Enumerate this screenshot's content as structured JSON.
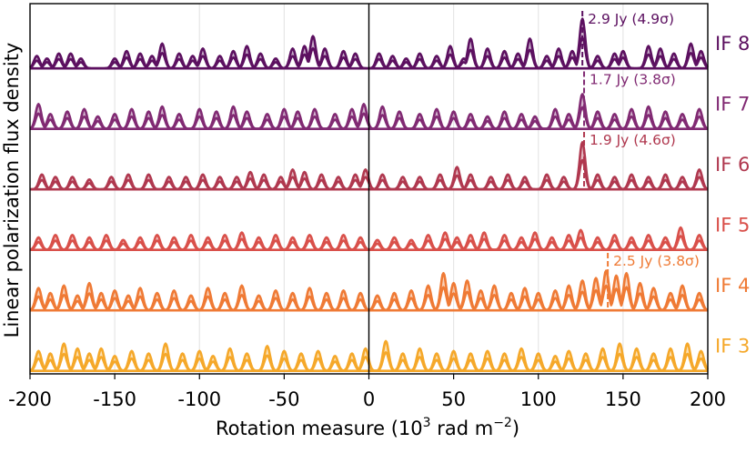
{
  "chart_data": {
    "type": "area",
    "title": "",
    "xlabel": "Rotation measure (10",
    "xlabel_sup": "3",
    "xlabel_unit": " rad m",
    "xlabel_unit_sup": "−2",
    "xlabel_close": ")",
    "ylabel": "Linear polarization flux density",
    "xlim": [
      -200,
      200
    ],
    "x_ticks": [
      -200,
      -150,
      -100,
      -50,
      0,
      50,
      100,
      150,
      200
    ],
    "x_tick_labels": [
      "-200",
      "-150",
      "-100",
      "-50",
      "0",
      "50",
      "100",
      "150",
      "200"
    ],
    "grid": true,
    "reference_line_x": 0,
    "series": [
      {
        "name": "IF 8",
        "color": "#5c1060",
        "peaks": [
          [
            -196,
            0.25
          ],
          [
            -190,
            0.2
          ],
          [
            -183,
            0.3
          ],
          [
            -176,
            0.3
          ],
          [
            -170,
            0.2
          ],
          [
            -150,
            0.2
          ],
          [
            -143,
            0.35
          ],
          [
            -135,
            0.3
          ],
          [
            -128,
            0.25
          ],
          [
            -122,
            0.5
          ],
          [
            -112,
            0.3
          ],
          [
            -104,
            0.25
          ],
          [
            -98,
            0.4
          ],
          [
            -88,
            0.25
          ],
          [
            -80,
            0.35
          ],
          [
            -72,
            0.45
          ],
          [
            -64,
            0.3
          ],
          [
            -55,
            0.2
          ],
          [
            -45,
            0.4
          ],
          [
            -38,
            0.45
          ],
          [
            -33,
            0.65
          ],
          [
            -26,
            0.4
          ],
          [
            -15,
            0.35
          ],
          [
            -8,
            0.3
          ],
          [
            6,
            0.3
          ],
          [
            14,
            0.25
          ],
          [
            22,
            0.2
          ],
          [
            30,
            0.3
          ],
          [
            40,
            0.25
          ],
          [
            48,
            0.45
          ],
          [
            56,
            0.2
          ],
          [
            60,
            0.6
          ],
          [
            70,
            0.4
          ],
          [
            80,
            0.35
          ],
          [
            88,
            0.3
          ],
          [
            95,
            0.6
          ],
          [
            105,
            0.25
          ],
          [
            112,
            0.4
          ],
          [
            120,
            0.35
          ],
          [
            126,
            1.0
          ],
          [
            135,
            0.25
          ],
          [
            145,
            0.3
          ],
          [
            150,
            0.35
          ],
          [
            165,
            0.45
          ],
          [
            172,
            0.4
          ],
          [
            180,
            0.3
          ],
          [
            190,
            0.5
          ],
          [
            196,
            0.35
          ]
        ],
        "annotation": {
          "x": 126,
          "label": "2.9 Jy (4.9σ)"
        }
      },
      {
        "name": "IF 7",
        "color": "#812a73",
        "peaks": [
          [
            -195,
            0.5
          ],
          [
            -188,
            0.3
          ],
          [
            -178,
            0.35
          ],
          [
            -168,
            0.4
          ],
          [
            -160,
            0.25
          ],
          [
            -150,
            0.3
          ],
          [
            -140,
            0.4
          ],
          [
            -130,
            0.35
          ],
          [
            -122,
            0.45
          ],
          [
            -112,
            0.3
          ],
          [
            -100,
            0.4
          ],
          [
            -90,
            0.35
          ],
          [
            -80,
            0.45
          ],
          [
            -72,
            0.35
          ],
          [
            -60,
            0.3
          ],
          [
            -50,
            0.4
          ],
          [
            -42,
            0.35
          ],
          [
            -32,
            0.4
          ],
          [
            -20,
            0.3
          ],
          [
            -10,
            0.4
          ],
          [
            -3,
            0.5
          ],
          [
            8,
            0.45
          ],
          [
            18,
            0.35
          ],
          [
            30,
            0.3
          ],
          [
            40,
            0.4
          ],
          [
            50,
            0.35
          ],
          [
            60,
            0.3
          ],
          [
            70,
            0.25
          ],
          [
            80,
            0.35
          ],
          [
            90,
            0.3
          ],
          [
            98,
            0.25
          ],
          [
            110,
            0.4
          ],
          [
            118,
            0.3
          ],
          [
            126,
            0.7
          ],
          [
            135,
            0.35
          ],
          [
            145,
            0.3
          ],
          [
            155,
            0.4
          ],
          [
            165,
            0.45
          ],
          [
            175,
            0.35
          ],
          [
            185,
            0.3
          ],
          [
            195,
            0.4
          ]
        ],
        "annotation": {
          "x": 127,
          "label": "1.7 Jy (3.8σ)"
        }
      },
      {
        "name": "IF 6",
        "color": "#b0384f",
        "peaks": [
          [
            -193,
            0.3
          ],
          [
            -185,
            0.25
          ],
          [
            -175,
            0.25
          ],
          [
            -165,
            0.2
          ],
          [
            -152,
            0.25
          ],
          [
            -142,
            0.3
          ],
          [
            -130,
            0.3
          ],
          [
            -118,
            0.25
          ],
          [
            -108,
            0.25
          ],
          [
            -98,
            0.3
          ],
          [
            -88,
            0.25
          ],
          [
            -78,
            0.25
          ],
          [
            -70,
            0.35
          ],
          [
            -62,
            0.3
          ],
          [
            -52,
            0.25
          ],
          [
            -45,
            0.4
          ],
          [
            -38,
            0.35
          ],
          [
            -28,
            0.3
          ],
          [
            -18,
            0.25
          ],
          [
            -8,
            0.3
          ],
          [
            -2,
            0.4
          ],
          [
            8,
            0.3
          ],
          [
            20,
            0.25
          ],
          [
            30,
            0.25
          ],
          [
            42,
            0.3
          ],
          [
            52,
            0.45
          ],
          [
            60,
            0.3
          ],
          [
            72,
            0.25
          ],
          [
            82,
            0.3
          ],
          [
            92,
            0.25
          ],
          [
            105,
            0.3
          ],
          [
            115,
            0.25
          ],
          [
            126,
            0.95
          ],
          [
            135,
            0.3
          ],
          [
            145,
            0.25
          ],
          [
            155,
            0.3
          ],
          [
            165,
            0.25
          ],
          [
            175,
            0.3
          ],
          [
            185,
            0.25
          ],
          [
            195,
            0.4
          ]
        ],
        "annotation": {
          "x": 127,
          "label": "1.9 Jy (4.6σ)"
        }
      },
      {
        "name": "IF 5",
        "color": "#d9504a",
        "peaks": [
          [
            -195,
            0.25
          ],
          [
            -185,
            0.3
          ],
          [
            -175,
            0.3
          ],
          [
            -165,
            0.25
          ],
          [
            -155,
            0.3
          ],
          [
            -145,
            0.2
          ],
          [
            -135,
            0.25
          ],
          [
            -125,
            0.3
          ],
          [
            -115,
            0.25
          ],
          [
            -105,
            0.3
          ],
          [
            -95,
            0.25
          ],
          [
            -85,
            0.3
          ],
          [
            -75,
            0.35
          ],
          [
            -65,
            0.25
          ],
          [
            -55,
            0.3
          ],
          [
            -45,
            0.25
          ],
          [
            -35,
            0.3
          ],
          [
            -25,
            0.25
          ],
          [
            -15,
            0.3
          ],
          [
            -5,
            0.25
          ],
          [
            5,
            0.2
          ],
          [
            15,
            0.25
          ],
          [
            25,
            0.2
          ],
          [
            35,
            0.3
          ],
          [
            45,
            0.35
          ],
          [
            52,
            0.25
          ],
          [
            60,
            0.3
          ],
          [
            68,
            0.35
          ],
          [
            80,
            0.3
          ],
          [
            90,
            0.25
          ],
          [
            98,
            0.35
          ],
          [
            108,
            0.25
          ],
          [
            118,
            0.3
          ],
          [
            125,
            0.4
          ],
          [
            135,
            0.25
          ],
          [
            145,
            0.3
          ],
          [
            155,
            0.25
          ],
          [
            165,
            0.3
          ],
          [
            175,
            0.25
          ],
          [
            184,
            0.45
          ],
          [
            195,
            0.3
          ]
        ],
        "annotation": null
      },
      {
        "name": "IF 4",
        "color": "#ef7a35",
        "peaks": [
          [
            -195,
            0.45
          ],
          [
            -188,
            0.35
          ],
          [
            -180,
            0.5
          ],
          [
            -172,
            0.3
          ],
          [
            -165,
            0.55
          ],
          [
            -158,
            0.35
          ],
          [
            -150,
            0.4
          ],
          [
            -142,
            0.3
          ],
          [
            -135,
            0.45
          ],
          [
            -125,
            0.35
          ],
          [
            -115,
            0.4
          ],
          [
            -105,
            0.3
          ],
          [
            -95,
            0.45
          ],
          [
            -85,
            0.35
          ],
          [
            -75,
            0.5
          ],
          [
            -65,
            0.3
          ],
          [
            -55,
            0.4
          ],
          [
            -45,
            0.35
          ],
          [
            -35,
            0.45
          ],
          [
            -25,
            0.35
          ],
          [
            -15,
            0.4
          ],
          [
            -5,
            0.35
          ],
          [
            5,
            0.3
          ],
          [
            15,
            0.35
          ],
          [
            25,
            0.4
          ],
          [
            35,
            0.5
          ],
          [
            44,
            0.75
          ],
          [
            50,
            0.55
          ],
          [
            58,
            0.6
          ],
          [
            66,
            0.4
          ],
          [
            74,
            0.5
          ],
          [
            84,
            0.35
          ],
          [
            92,
            0.45
          ],
          [
            100,
            0.35
          ],
          [
            110,
            0.4
          ],
          [
            118,
            0.5
          ],
          [
            126,
            0.6
          ],
          [
            134,
            0.65
          ],
          [
            140,
            0.8
          ],
          [
            146,
            0.7
          ],
          [
            152,
            0.75
          ],
          [
            160,
            0.55
          ],
          [
            168,
            0.45
          ],
          [
            178,
            0.35
          ],
          [
            185,
            0.5
          ],
          [
            195,
            0.35
          ]
        ],
        "annotation": {
          "x": 141,
          "label": "2.5 Jy (3.8σ)"
        }
      },
      {
        "name": "IF 3",
        "color": "#f5a82a",
        "peaks": [
          [
            -195,
            0.4
          ],
          [
            -188,
            0.35
          ],
          [
            -180,
            0.55
          ],
          [
            -172,
            0.45
          ],
          [
            -165,
            0.35
          ],
          [
            -158,
            0.45
          ],
          [
            -150,
            0.3
          ],
          [
            -140,
            0.4
          ],
          [
            -130,
            0.35
          ],
          [
            -120,
            0.55
          ],
          [
            -110,
            0.35
          ],
          [
            -100,
            0.4
          ],
          [
            -92,
            0.3
          ],
          [
            -82,
            0.45
          ],
          [
            -72,
            0.35
          ],
          [
            -60,
            0.5
          ],
          [
            -50,
            0.4
          ],
          [
            -40,
            0.35
          ],
          [
            -30,
            0.4
          ],
          [
            -20,
            0.3
          ],
          [
            -10,
            0.35
          ],
          [
            -2,
            0.45
          ],
          [
            10,
            0.6
          ],
          [
            20,
            0.35
          ],
          [
            30,
            0.45
          ],
          [
            40,
            0.35
          ],
          [
            50,
            0.4
          ],
          [
            60,
            0.35
          ],
          [
            70,
            0.4
          ],
          [
            80,
            0.35
          ],
          [
            90,
            0.45
          ],
          [
            100,
            0.35
          ],
          [
            110,
            0.3
          ],
          [
            118,
            0.4
          ],
          [
            128,
            0.35
          ],
          [
            138,
            0.45
          ],
          [
            148,
            0.55
          ],
          [
            158,
            0.45
          ],
          [
            168,
            0.35
          ],
          [
            178,
            0.45
          ],
          [
            188,
            0.55
          ],
          [
            196,
            0.4
          ]
        ],
        "annotation": null
      }
    ]
  }
}
